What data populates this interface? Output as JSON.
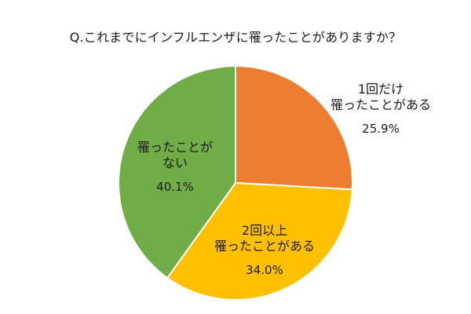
{
  "chart_data": {
    "type": "pie",
    "title": "Q.これまでにインフルエンザに罹ったことがありますか？",
    "slices": [
      {
        "label_lines": [
          "1回だけ",
          "罹ったことがある"
        ],
        "value": 25.9,
        "value_text": "25.9%",
        "color": "#ED7D31"
      },
      {
        "label_lines": [
          "2回以上",
          "罹ったことがある"
        ],
        "value": 34.0,
        "value_text": "34.0%",
        "color": "#FFC000"
      },
      {
        "label_lines": [
          "罹ったことが",
          "ない"
        ],
        "value": 40.1,
        "value_text": "40.1%",
        "color": "#70AD47"
      }
    ],
    "start_angle_deg": 0,
    "direction": "clockwise",
    "edge_color": "#ffffff"
  }
}
